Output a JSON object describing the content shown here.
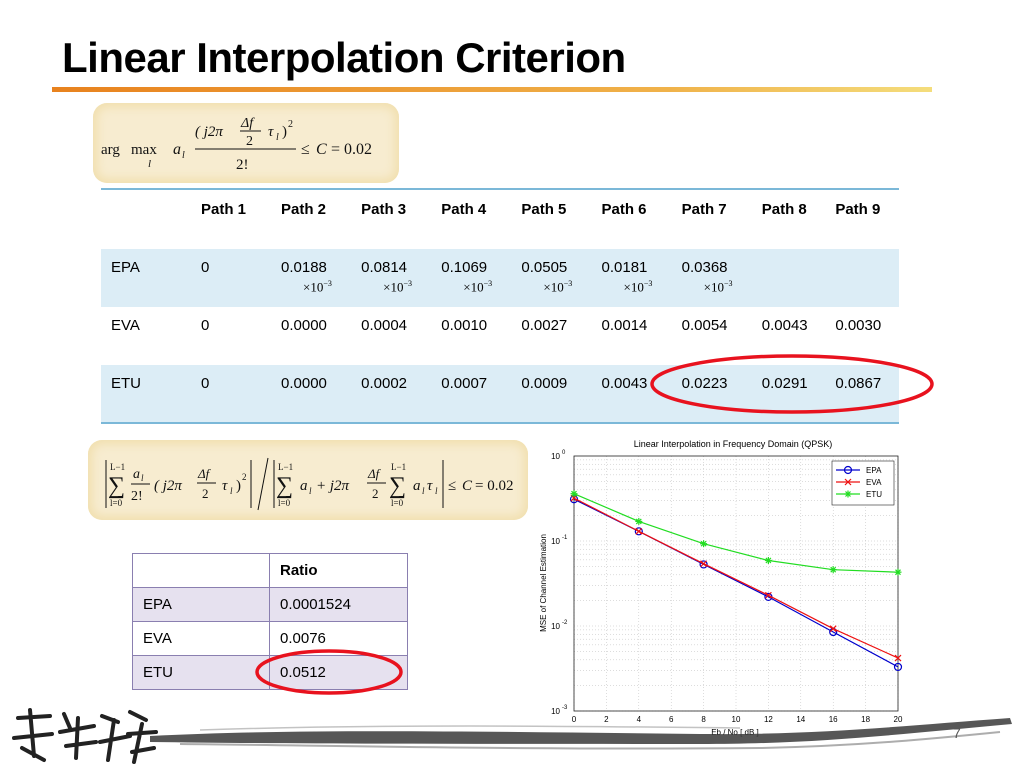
{
  "title": "Linear Interpolation Criterion",
  "formula1": {
    "arg": "arg",
    "max": "max",
    "sub_l": "l",
    "a": "a",
    "numerator_open": "( j2π",
    "delta_f": "Δf",
    "two": "2",
    "tau": "τ",
    "close_sq": ")",
    "exp2": "2",
    "denominator": "2!",
    "leq": "≤",
    "C": "C",
    "value": "= 0.02"
  },
  "formula2": {
    "sum_upper": "L−1",
    "sum_lower": "l=0",
    "a": "a",
    "sub_l": "l",
    "two_fact": "2!",
    "j2pi": "( j2π",
    "delta_f": "Δf",
    "two": "2",
    "tau": "τ",
    "close_sq": ")",
    "exp2": "2",
    "plus_j2pi": "+ j2π",
    "leq": "≤",
    "C": "C",
    "value": "= 0.02"
  },
  "path_table": {
    "headers": [
      "",
      "Path 1",
      "Path 2",
      "Path 3",
      "Path 4",
      "Path 5",
      "Path 6",
      "Path 7",
      "Path 8",
      "Path 9"
    ],
    "rows": [
      {
        "label": "EPA",
        "values": [
          "0",
          "0.0188",
          "0.0814",
          "0.1069",
          "0.0505",
          "0.0181",
          "0.0368",
          "",
          ""
        ],
        "exp_text": "×10",
        "exp_sup": "−3"
      },
      {
        "label": "EVA",
        "values": [
          "0",
          "0.0000",
          "0.0004",
          "0.0010",
          "0.0027",
          "0.0014",
          "0.0054",
          "0.0043",
          "0.0030"
        ]
      },
      {
        "label": "ETU",
        "values": [
          "0",
          "0.0000",
          "0.0002",
          "0.0007",
          "0.0009",
          "0.0043",
          "0.0223",
          "0.0291",
          "0.0867"
        ]
      }
    ]
  },
  "ratio_table": {
    "header": [
      "",
      "Ratio"
    ],
    "rows": [
      {
        "label": "EPA",
        "value": "0.0001524"
      },
      {
        "label": "EVA",
        "value": "0.0076"
      },
      {
        "label": "ETU",
        "value": "0.0512"
      }
    ]
  },
  "annotation_color": "#e8121e",
  "page_number": "7",
  "chart_data": {
    "type": "line",
    "title": "Linear Interpolation in Frequency Domain (QPSK)",
    "xlabel": "Eb / No [ dB ]",
    "ylabel": "MSE of Channel Estimation",
    "x": [
      0,
      4,
      8,
      12,
      16,
      20
    ],
    "xticks": [
      "0",
      "2",
      "4",
      "6",
      "8",
      "10",
      "12",
      "14",
      "16",
      "18",
      "20"
    ],
    "xlim": [
      0,
      20
    ],
    "ylim": [
      0.001,
      1
    ],
    "yscale": "log",
    "ytick_base": "10",
    "ytick_exps": [
      "0",
      "-1",
      "-2",
      "-3"
    ],
    "grid": true,
    "legend_position": "top-right",
    "series": [
      {
        "name": "EPA",
        "color": "#0000cc",
        "marker": "circle",
        "values": [
          0.31,
          0.13,
          0.053,
          0.022,
          0.0085,
          0.0033
        ]
      },
      {
        "name": "EVA",
        "color": "#ee1111",
        "marker": "x",
        "values": [
          0.32,
          0.13,
          0.054,
          0.023,
          0.0093,
          0.0042
        ]
      },
      {
        "name": "ETU",
        "color": "#22dd22",
        "marker": "star",
        "values": [
          0.36,
          0.17,
          0.093,
          0.059,
          0.046,
          0.043
        ]
      }
    ]
  }
}
